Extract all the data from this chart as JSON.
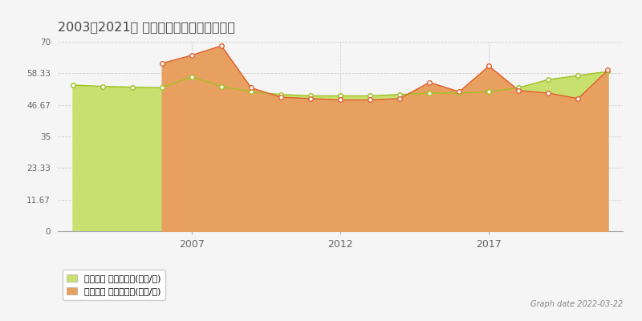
{
  "title": "2003～2021年 さいたま市緑区の地価推移",
  "graph_date": "Graph date 2022-03-22",
  "xlim": [
    2002.5,
    2021.5
  ],
  "ylim": [
    0,
    70
  ],
  "yticks": [
    0,
    11.67,
    23.33,
    35,
    46.67,
    58.33,
    70
  ],
  "ytick_labels": [
    "0",
    "11.67",
    "23.33",
    "35",
    "46.67",
    "58.33",
    "70"
  ],
  "xticks": [
    2007,
    2012,
    2017
  ],
  "bg_color": "#f5f5f5",
  "plot_bg_color": "#f5f5f5",
  "grid_color": "#cccccc",
  "kouji_years": [
    2003,
    2004,
    2005,
    2006,
    2007,
    2008,
    2009,
    2010,
    2011,
    2012,
    2013,
    2014,
    2015,
    2016,
    2017,
    2018,
    2019,
    2020,
    2021
  ],
  "kouji_values": [
    54.0,
    53.5,
    53.2,
    53.0,
    57.0,
    53.5,
    51.5,
    50.5,
    50.0,
    50.0,
    50.0,
    50.5,
    51.0,
    51.0,
    51.5,
    53.0,
    56.0,
    57.5,
    59.0
  ],
  "kouji_color": "#c8e06e",
  "kouji_line_color": "#a0c020",
  "torihiki_years": [
    2006,
    2007,
    2008,
    2009,
    2010,
    2011,
    2012,
    2013,
    2014,
    2015,
    2016,
    2017,
    2018,
    2019,
    2020,
    2021
  ],
  "torihiki_values": [
    62.0,
    65.0,
    68.5,
    53.0,
    49.5,
    49.0,
    48.5,
    48.5,
    49.0,
    55.0,
    51.5,
    61.0,
    52.0,
    51.0,
    49.0,
    59.5
  ],
  "torihiki_color": "#e8a060",
  "torihiki_line_color": "#e06030",
  "legend_kouji_color": "#c8e06e",
  "legend_torihiki_color": "#e8a060",
  "legend_kouji_label": "地価公示 平均坤単価(万円/坤)",
  "legend_torihiki_label": "取引価格 平均坤単価(万円/坤)"
}
